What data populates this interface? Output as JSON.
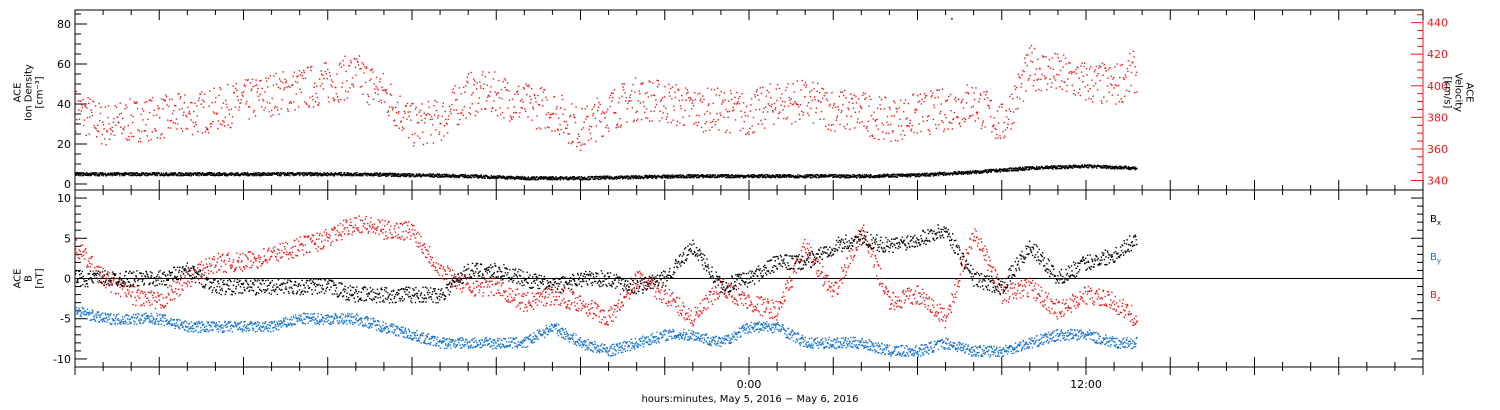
{
  "chart_data": [
    {
      "type": "scatter",
      "ylabel": [
        "ACE",
        "Ion Density",
        "[cm⁻³]"
      ],
      "ylim": [
        -3,
        87
      ],
      "yticks": [
        0,
        20,
        40,
        60,
        80
      ],
      "y2label": [
        "ACE",
        "Velocity",
        "[km/s]"
      ],
      "y2lim": [
        334,
        448
      ],
      "y2ticks": [
        340,
        360,
        380,
        400,
        420,
        440
      ],
      "series": [
        {
          "axis": "left",
          "color": "#000000",
          "x": [
            -24,
            -22,
            -20,
            -18,
            -16,
            -14,
            -12,
            -10,
            -8,
            -6,
            -4,
            -2,
            0,
            2,
            4,
            6,
            8,
            10,
            12,
            13.8
          ],
          "values": [
            5,
            5,
            5,
            5,
            5,
            5,
            4.5,
            4,
            3,
            3,
            3.5,
            4,
            4,
            4,
            4,
            4.5,
            6,
            8,
            9,
            8
          ]
        },
        {
          "axis": "right",
          "color": "#e8191a",
          "x": [
            -24,
            -23,
            -22,
            -21,
            -20,
            -19,
            -18,
            -17,
            -16,
            -15,
            -14,
            -13,
            -12,
            -11,
            -10,
            -9,
            -8,
            -7,
            -6,
            -5,
            -4,
            -3,
            -2,
            -1,
            0,
            1,
            2,
            3,
            4,
            5,
            6,
            7,
            8,
            9,
            10,
            11,
            12,
            13,
            13.8
          ],
          "values": [
            385,
            375,
            378,
            380,
            382,
            385,
            390,
            395,
            398,
            402,
            407,
            395,
            375,
            378,
            395,
            395,
            388,
            385,
            372,
            385,
            392,
            390,
            385,
            385,
            382,
            390,
            390,
            385,
            383,
            378,
            382,
            385,
            390,
            375,
            412,
            407,
            402,
            400,
            410
          ]
        }
      ],
      "annotations": [
        {
          "x": 7.2,
          "y": 83,
          "axis": "left",
          "text": "."
        }
      ]
    },
    {
      "type": "scatter",
      "ylabel": [
        "ACE",
        "B",
        "[nT]"
      ],
      "ylim": [
        -11,
        11
      ],
      "yticks": [
        -10,
        -5,
        0,
        5,
        10
      ],
      "zero_line": true,
      "series": [
        {
          "name": "B",
          "sub": "x",
          "color": "#000000",
          "x": [
            -24,
            -23,
            -22,
            -21,
            -20,
            -19,
            -18,
            -17,
            -16,
            -15,
            -14,
            -13,
            -12,
            -11,
            -10,
            -9,
            -8,
            -7,
            -6,
            -5,
            -4,
            -3,
            -2,
            -1,
            0,
            1,
            2,
            3,
            4,
            5,
            6,
            7,
            8,
            9,
            10,
            11,
            12,
            13,
            13.8
          ],
          "values": [
            0,
            0,
            0,
            0,
            1,
            -1,
            -1,
            -1,
            -1,
            -1,
            -2,
            -2,
            -2,
            -2,
            1,
            1,
            0,
            -1,
            0,
            0,
            -1,
            0,
            4,
            -1,
            0,
            2,
            2,
            4,
            5,
            4,
            5,
            6,
            0,
            -1,
            4,
            0,
            2,
            3,
            5
          ]
        },
        {
          "name": "B",
          "sub": "y",
          "color": "#1874cd",
          "x": [
            -24,
            -23,
            -22,
            -21,
            -20,
            -19,
            -18,
            -17,
            -16,
            -15,
            -14,
            -13,
            -12,
            -11,
            -10,
            -9,
            -8,
            -7,
            -6,
            -5,
            -4,
            -3,
            -2,
            -1,
            0,
            1,
            2,
            3,
            4,
            5,
            6,
            7,
            8,
            9,
            10,
            11,
            12,
            13,
            13.8
          ],
          "values": [
            -4,
            -5,
            -5,
            -5,
            -6,
            -6,
            -6,
            -6,
            -5,
            -5,
            -5,
            -6,
            -7,
            -8,
            -8,
            -8,
            -8,
            -6,
            -8,
            -9,
            -8,
            -7,
            -7,
            -8,
            -6,
            -6,
            -8,
            -8,
            -8,
            -9,
            -9,
            -8,
            -9,
            -9,
            -8,
            -7,
            -7,
            -8,
            -8
          ]
        },
        {
          "name": "B",
          "sub": "z",
          "color": "#e8191a",
          "x": [
            -24,
            -23,
            -22,
            -21,
            -20,
            -19,
            -18,
            -17,
            -16,
            -15,
            -14,
            -13,
            -12,
            -11,
            -10,
            -9,
            -8,
            -7,
            -6,
            -5,
            -4,
            -3,
            -2,
            -1,
            0,
            1,
            2,
            3,
            4,
            5,
            6,
            7,
            8,
            9,
            10,
            11,
            12,
            13,
            13.8
          ],
          "values": [
            4,
            0,
            -2,
            -3,
            0,
            2,
            2,
            3,
            4,
            5,
            7,
            6,
            6,
            1,
            -1,
            -1,
            -3,
            -2,
            -3,
            -5,
            0,
            -2,
            -5,
            -1,
            -3,
            -4,
            4,
            -2,
            6,
            -3,
            -2,
            -5,
            6,
            -2,
            -1,
            -4,
            -2,
            -3,
            -5
          ]
        }
      ]
    }
  ],
  "x_axis": {
    "range": [
      -24,
      24
    ],
    "ticks": [
      {
        "x": 0,
        "label": "0:00"
      },
      {
        "x": 12,
        "label": "12:00"
      }
    ],
    "minor_step": 1,
    "major_step": 3,
    "label": "hours:minutes, May  5, 2016 − May  6, 2016"
  }
}
